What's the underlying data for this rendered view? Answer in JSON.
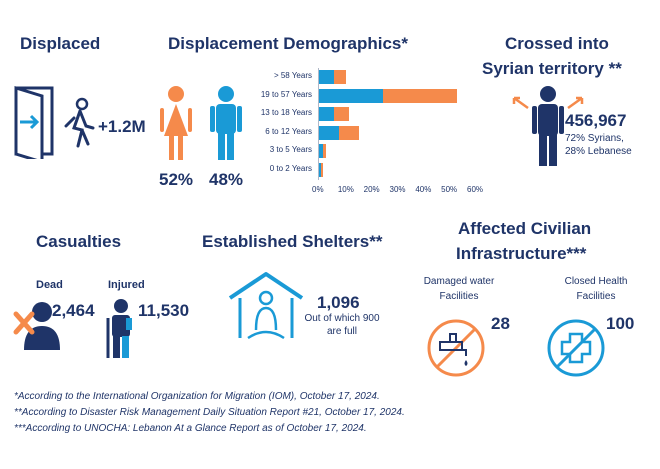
{
  "colors": {
    "navy": "#1f3468",
    "teal": "#1a9ad6",
    "orange": "#f58a4b"
  },
  "displaced": {
    "title": "Displaced",
    "value": "+1.2M",
    "icons": [
      "door-exit-icon",
      "walking-person-icon"
    ]
  },
  "demographics": {
    "title": "Displacement Demographics*",
    "female_pct": "52%",
    "male_pct": "48%",
    "icons": [
      "female-person-icon",
      "male-person-icon"
    ]
  },
  "chart_data": {
    "type": "bar",
    "orientation": "horizontal",
    "stacked": true,
    "categories": [
      "> 58 Years",
      "19 to 57 Years",
      "13 to 18 Years",
      "6 to 12 Years",
      "3 to 5 Years",
      "0 to 2 Years"
    ],
    "series": [
      {
        "color": "#1a9ad6",
        "values": [
          6,
          25,
          6,
          8,
          2,
          1
        ]
      },
      {
        "color": "#f58a4b",
        "values": [
          5,
          29,
          6,
          8,
          1,
          1
        ]
      }
    ],
    "xticks": [
      "0%",
      "10%",
      "20%",
      "30%",
      "40%",
      "50%",
      "60%"
    ],
    "xlim": [
      0,
      60
    ],
    "grid": false
  },
  "crossed": {
    "title_line1": "Crossed into",
    "title_line2": "Syrian territory **",
    "value": "456,967",
    "note_line1": "72% Syrians,",
    "note_line2": "28% Lebanese"
  },
  "casualties": {
    "title": "Casualties",
    "dead_label": "Dead",
    "dead_value": "2,464",
    "injured_label": "Injured",
    "injured_value": "11,530"
  },
  "shelters": {
    "title": "Established Shelters**",
    "value": "1,096",
    "note_line1": "Out of which 900",
    "note_line2": "are full"
  },
  "infrastructure": {
    "title_line1": "Affected Civilian",
    "title_line2": "Infrastructure***",
    "water_label_line1": "Damaged water",
    "water_label_line2": "Facilities",
    "water_value": "28",
    "health_label_line1": "Closed Health",
    "health_label_line2": "Facilities",
    "health_value": "100"
  },
  "footnotes": [
    "*According to the International Organization for Migration (IOM), October 17, 2024.",
    "**According to Disaster Risk Management Daily Situation Report #21, October 17, 2024.",
    "***According to UNOCHA: Lebanon At a Glance Report as of October 17, 2024."
  ]
}
